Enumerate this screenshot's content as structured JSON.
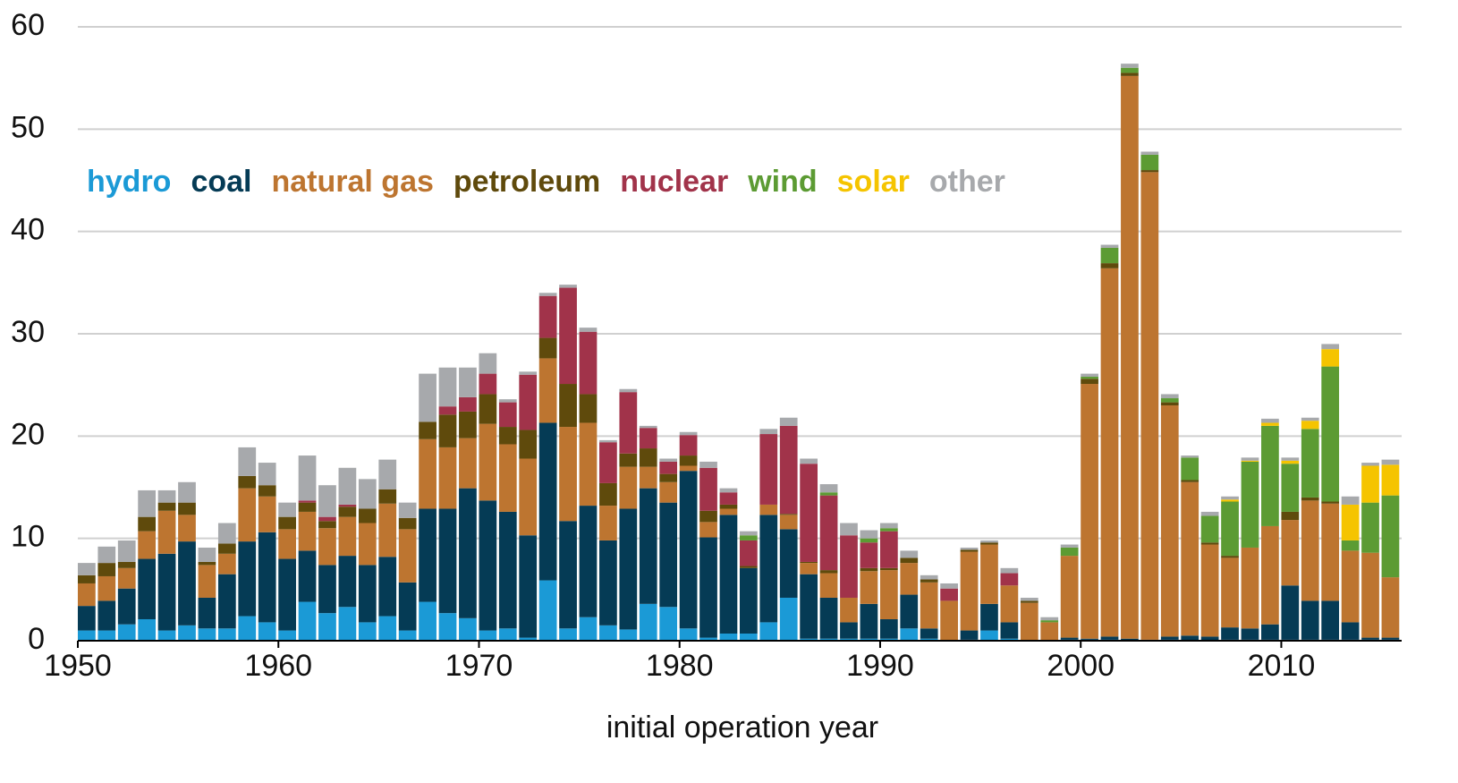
{
  "chart_data": {
    "type": "stacked_bar",
    "x_label": "initial operation year",
    "x": [
      1950,
      1951,
      1952,
      1953,
      1954,
      1955,
      1956,
      1957,
      1958,
      1959,
      1960,
      1961,
      1962,
      1963,
      1964,
      1965,
      1966,
      1967,
      1968,
      1969,
      1970,
      1971,
      1972,
      1973,
      1974,
      1975,
      1976,
      1977,
      1978,
      1979,
      1980,
      1981,
      1982,
      1983,
      1984,
      1985,
      1986,
      1987,
      1988,
      1989,
      1990,
      1991,
      1992,
      1993,
      1994,
      1995,
      1996,
      1997,
      1998,
      1999,
      2000,
      2001,
      2002,
      2003,
      2004,
      2005,
      2006,
      2007,
      2008,
      2009,
      2010,
      2011,
      2012,
      2013,
      2014,
      2015
    ],
    "xlim": [
      1950,
      2016
    ],
    "xticks": [
      1950,
      1960,
      1970,
      1980,
      1990,
      2000,
      2010
    ],
    "ylim": [
      0,
      60
    ],
    "yticks": [
      0,
      10,
      20,
      30,
      40,
      50,
      60
    ],
    "grid": true,
    "series": [
      {
        "name": "hydro",
        "color": "#1b9ad6",
        "values": [
          1,
          1,
          1.6,
          2.1,
          1,
          1.5,
          1.2,
          1.2,
          2.4,
          1.8,
          1,
          3.8,
          2.7,
          3.3,
          1.8,
          2.4,
          1,
          3.8,
          2.7,
          2.2,
          1,
          1.2,
          0.3,
          5.9,
          1.2,
          2.3,
          1.5,
          1.1,
          3.6,
          3.3,
          1.2,
          0.3,
          0.7,
          0.7,
          1.8,
          4.2,
          0.2,
          0.2,
          0.2,
          0.2,
          0.2,
          1.2,
          0.2,
          0,
          0.1,
          1,
          0.2,
          0,
          0,
          0.1,
          0.1,
          0.1,
          0,
          0,
          0.1,
          0,
          0,
          0.1,
          0.1,
          0.1,
          0.1,
          0.1,
          0.1,
          0.1,
          0.1,
          0.1
        ]
      },
      {
        "name": "coal",
        "color": "#053b55",
        "values": [
          2.4,
          2.9,
          3.5,
          5.9,
          7.5,
          8.2,
          3,
          5.3,
          7.3,
          8.8,
          7,
          5,
          4.7,
          5,
          5.6,
          5.8,
          4.7,
          9.1,
          10.2,
          12.7,
          12.7,
          11.4,
          10,
          15.4,
          10.5,
          10.9,
          8.3,
          11.8,
          11.3,
          10.2,
          15.4,
          9.8,
          11.6,
          6.4,
          10.5,
          6.7,
          6.3,
          4,
          1.6,
          3.4,
          1.9,
          3.3,
          1,
          0,
          0.9,
          2.6,
          1.6,
          0,
          0,
          0.2,
          0.1,
          0.3,
          0.2,
          0.1,
          0.3,
          0.5,
          0.4,
          1.2,
          1.1,
          1.5,
          5.3,
          3.8,
          3.8,
          1.7,
          0.2,
          0.2
        ]
      },
      {
        "name": "natural gas",
        "color": "#bd7530",
        "values": [
          2.2,
          2.4,
          2,
          2.7,
          4.2,
          2.6,
          3.2,
          2,
          5.2,
          3.5,
          2.9,
          3.8,
          3.6,
          3.8,
          4.1,
          5.2,
          5.2,
          6.8,
          6,
          4.9,
          7.5,
          6.6,
          7.5,
          6.3,
          9.2,
          8.1,
          3.4,
          4.1,
          2.1,
          2,
          0.5,
          1.5,
          0.6,
          0,
          1,
          1.4,
          1.1,
          2.4,
          2.4,
          3.2,
          4.8,
          3.1,
          4.5,
          3.9,
          7.7,
          5.8,
          3.6,
          3.7,
          1.8,
          8,
          24.9,
          36,
          55,
          45.7,
          22.6,
          15,
          9,
          6.8,
          7.9,
          9.6,
          6.4,
          9.8,
          9.5,
          7,
          8.3,
          5.9
        ]
      },
      {
        "name": "petroleum",
        "color": "#5f4a0c",
        "values": [
          0.8,
          1.3,
          0.6,
          1.4,
          0.8,
          1.2,
          0.3,
          1,
          1.2,
          1.1,
          1.2,
          0.9,
          0.7,
          1,
          1.4,
          1.4,
          1.1,
          1.7,
          3.2,
          2.6,
          2.9,
          1.7,
          2.8,
          2,
          4.2,
          2.8,
          2.2,
          1.3,
          1.8,
          0.8,
          1,
          1.1,
          0.4,
          0.2,
          0,
          0.1,
          0.1,
          0.3,
          0,
          0.3,
          0.2,
          0.5,
          0.3,
          0,
          0.2,
          0.2,
          0,
          0.2,
          0,
          0,
          0.5,
          0.5,
          0.3,
          0.2,
          0.3,
          0.2,
          0.2,
          0.2,
          0,
          0,
          0.8,
          0.3,
          0.2,
          0,
          0,
          0
        ]
      },
      {
        "name": "nuclear",
        "color": "#a1334a",
        "values": [
          0,
          0,
          0,
          0,
          0,
          0,
          0,
          0,
          0,
          0,
          0,
          0.2,
          0.4,
          0.2,
          0,
          0,
          0,
          0,
          0.8,
          1.4,
          2,
          2.4,
          5.4,
          4.1,
          9.4,
          6.1,
          4,
          6,
          2,
          1.2,
          2,
          4.2,
          1.2,
          2.5,
          6.9,
          8.6,
          9.6,
          7.3,
          6.1,
          2.5,
          3.6,
          0,
          0,
          1.2,
          0,
          0,
          1.2,
          0,
          0,
          0,
          0,
          0,
          0,
          0,
          0,
          0,
          0,
          0,
          0,
          0,
          0,
          0,
          0,
          0,
          0,
          0
        ]
      },
      {
        "name": "wind",
        "color": "#5c9b33",
        "values": [
          0,
          0,
          0,
          0,
          0,
          0,
          0,
          0,
          0,
          0,
          0,
          0,
          0,
          0,
          0,
          0,
          0,
          0,
          0,
          0,
          0,
          0,
          0,
          0,
          0,
          0,
          0,
          0,
          0,
          0,
          0,
          0,
          0,
          0.5,
          0,
          0,
          0,
          0.3,
          0,
          0.4,
          0.3,
          0,
          0,
          0,
          0,
          0,
          0,
          0,
          0.2,
          0.8,
          0.2,
          1.5,
          0.5,
          1.5,
          0.4,
          2.2,
          2.6,
          5.3,
          8.4,
          9.8,
          4.7,
          6.7,
          13.2,
          1,
          4.9,
          8
        ]
      },
      {
        "name": "solar",
        "color": "#f5c400",
        "values": [
          0,
          0,
          0,
          0,
          0,
          0,
          0,
          0,
          0,
          0,
          0,
          0,
          0,
          0,
          0,
          0,
          0,
          0,
          0,
          0,
          0,
          0,
          0,
          0,
          0,
          0,
          0,
          0,
          0,
          0,
          0,
          0,
          0,
          0,
          0,
          0,
          0,
          0,
          0,
          0,
          0,
          0,
          0,
          0,
          0,
          0,
          0,
          0,
          0,
          0,
          0,
          0,
          0,
          0,
          0,
          0,
          0,
          0.2,
          0.1,
          0.3,
          0.3,
          0.8,
          1.7,
          3.5,
          3.6,
          3
        ]
      },
      {
        "name": "other",
        "color": "#a7a9ac",
        "values": [
          1.2,
          1.6,
          2.1,
          2.6,
          1.2,
          2,
          1.4,
          2,
          2.8,
          2.2,
          1.4,
          4.4,
          3.1,
          3.6,
          2.9,
          2.9,
          1.5,
          4.7,
          3.8,
          2.9,
          2,
          0.3,
          0.3,
          0.3,
          0.3,
          0.4,
          0.2,
          0.3,
          0.2,
          0.3,
          0.3,
          0.6,
          0.4,
          0.4,
          0.5,
          0.8,
          0.5,
          0.8,
          1.2,
          0.8,
          0.5,
          0.7,
          0.4,
          0.5,
          0.2,
          0.2,
          0.5,
          0.3,
          0.3,
          0.3,
          0.3,
          0.3,
          0.4,
          0.3,
          0.4,
          0.2,
          0.4,
          0.3,
          0.3,
          0.4,
          0.3,
          0.3,
          0.5,
          0.8,
          0.3,
          0.5
        ]
      }
    ]
  }
}
